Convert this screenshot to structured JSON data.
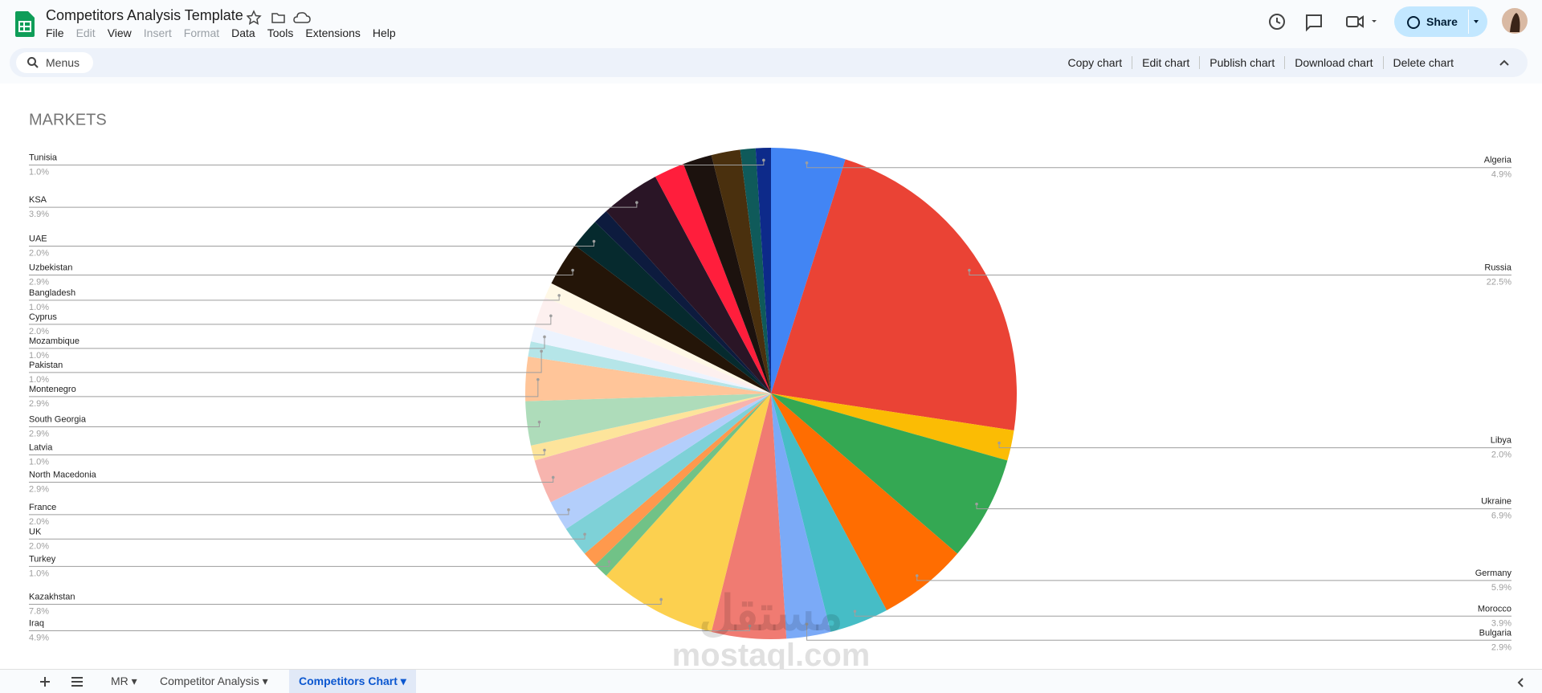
{
  "header": {
    "title": "Competitors Analysis Template",
    "menus": [
      "File",
      "Edit",
      "View",
      "Insert",
      "Format",
      "Data",
      "Tools",
      "Extensions",
      "Help"
    ],
    "share": "Share"
  },
  "toolbar": {
    "search": "Menus",
    "actions": [
      "Copy chart",
      "Edit chart",
      "Publish chart",
      "Download chart",
      "Delete chart"
    ]
  },
  "chart_data": {
    "type": "pie",
    "title": "MARKETS",
    "categories": [
      "Algeria",
      "Russia",
      "Libya",
      "Ukraine",
      "Germany",
      "Morocco",
      "Bulgaria",
      "Iraq",
      "Kazakhstan",
      "Turkey",
      null,
      "UK",
      "France",
      "North Macedonia",
      "Latvia",
      "South Georgia",
      "Montenegro",
      "Pakistan",
      "Mozambique",
      "Cyprus",
      "Bangladesh",
      "Uzbekistan",
      "UAE",
      null,
      "KSA",
      null,
      null,
      null,
      null,
      "Tunisia"
    ],
    "values": [
      4.9,
      22.5,
      2.0,
      6.9,
      5.9,
      3.9,
      2.9,
      4.9,
      7.8,
      1.0,
      1.0,
      2.0,
      2.0,
      2.9,
      1.0,
      2.9,
      2.9,
      1.0,
      1.0,
      2.0,
      1.0,
      2.9,
      2.0,
      1.0,
      3.9,
      2.0,
      1.9,
      1.9,
      1.0,
      1.0
    ],
    "value_labels": [
      "4.9%",
      "22.5%",
      "2.0%",
      "6.9%",
      "5.9%",
      "3.9%",
      "2.9%",
      "4.9%",
      "7.8%",
      "1.0%",
      null,
      "2.0%",
      "2.0%",
      "2.9%",
      "1.0%",
      "2.9%",
      "2.9%",
      "1.0%",
      "1.0%",
      "2.0%",
      "1.0%",
      "2.9%",
      "2.0%",
      null,
      "3.9%",
      null,
      null,
      null,
      null,
      "1.0%"
    ],
    "colors": [
      "#4285f4",
      "#ea4335",
      "#fbbc04",
      "#34a853",
      "#ff6d01",
      "#46bdc6",
      "#7baaf7",
      "#f07b72",
      "#fcd04f",
      "#71c287",
      "#ff994d",
      "#7ed1d7",
      "#b3cefb",
      "#f7b4ae",
      "#fde49b",
      "#aedcba",
      "#ffc599",
      "#b5e5e8",
      "#ecf3fe",
      "#fdf0ef",
      "#fff8e6",
      "#241508",
      "#062a2e",
      "#0d1b3e",
      "#2a1526",
      "#ff1e3c",
      "#1c120e",
      "#4a300e",
      "#0f5a5a",
      "#0d2a8a"
    ]
  },
  "tabs": [
    "MR",
    "Competitor Analysis",
    "Competitors Chart"
  ],
  "watermark": {
    "logo": "مستقل",
    "site": "mostaql.com"
  }
}
